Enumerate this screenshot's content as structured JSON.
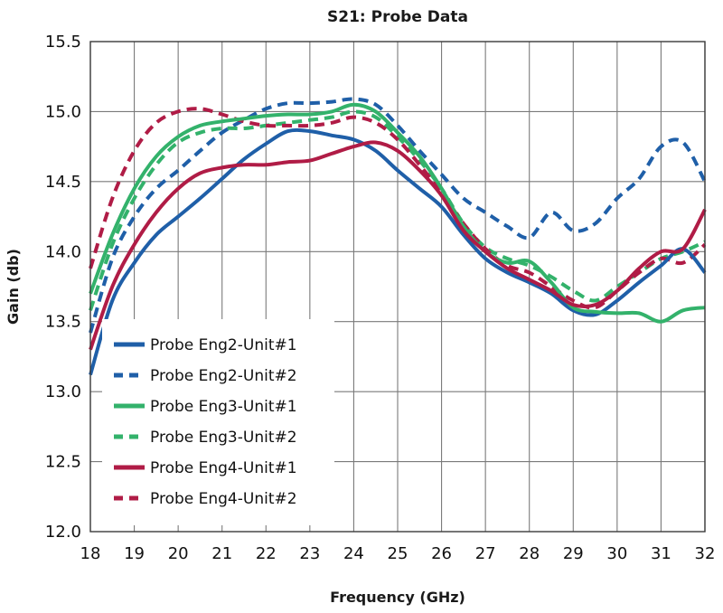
{
  "chart_data": {
    "type": "line",
    "title": "S21: Probe Data",
    "xlabel": "Frequency (GHz)",
    "ylabel": "Gain (db)",
    "xlim": [
      18,
      32
    ],
    "ylim": [
      12.0,
      15.5
    ],
    "x_ticks": [
      "18",
      "19",
      "20",
      "21",
      "22",
      "23",
      "24",
      "25",
      "26",
      "27",
      "28",
      "29",
      "30",
      "31",
      "32"
    ],
    "y_ticks": [
      "12.0",
      "12.5",
      "13.0",
      "13.5",
      "14.0",
      "14.5",
      "15.0",
      "15.5"
    ],
    "grid": true,
    "legend_position": "bottom-left",
    "series": [
      {
        "name": "Probe Eng2-Unit#1",
        "color": "#1f5fa8",
        "dash": "solid",
        "x": [
          18,
          18.5,
          19,
          19.5,
          20,
          20.5,
          21,
          21.5,
          22,
          22.5,
          23,
          23.5,
          24,
          24.5,
          25,
          25.5,
          26,
          26.5,
          27,
          27.5,
          28,
          28.5,
          29,
          29.5,
          30,
          30.5,
          31,
          31.5,
          32
        ],
        "y": [
          13.12,
          13.65,
          13.92,
          14.12,
          14.25,
          14.38,
          14.52,
          14.66,
          14.77,
          14.86,
          14.86,
          14.83,
          14.8,
          14.72,
          14.58,
          14.45,
          14.32,
          14.12,
          13.95,
          13.85,
          13.78,
          13.7,
          13.58,
          13.55,
          13.65,
          13.78,
          13.9,
          14.02,
          13.85
        ]
      },
      {
        "name": "Probe Eng2-Unit#2",
        "color": "#1f5fa8",
        "dash": "dashed",
        "x": [
          18,
          18.5,
          19,
          19.5,
          20,
          20.5,
          21,
          21.5,
          22,
          22.5,
          23,
          23.5,
          24,
          24.5,
          25,
          25.5,
          26,
          26.5,
          27,
          27.5,
          28,
          28.5,
          29,
          29.5,
          30,
          30.5,
          31,
          31.5,
          32
        ],
        "y": [
          13.42,
          13.95,
          14.25,
          14.45,
          14.58,
          14.72,
          14.85,
          14.94,
          15.02,
          15.06,
          15.06,
          15.07,
          15.09,
          15.05,
          14.9,
          14.72,
          14.55,
          14.38,
          14.28,
          14.18,
          14.1,
          14.28,
          14.15,
          14.2,
          14.38,
          14.52,
          14.75,
          14.78,
          14.5
        ]
      },
      {
        "name": "Probe Eng3-Unit#1",
        "color": "#33b26b",
        "dash": "solid",
        "x": [
          18,
          18.5,
          19,
          19.5,
          20,
          20.5,
          21,
          21.5,
          22,
          22.5,
          23,
          23.5,
          24,
          24.5,
          25,
          25.5,
          26,
          26.5,
          27,
          27.5,
          28,
          28.5,
          29,
          29.5,
          30,
          30.5,
          31,
          31.5,
          32
        ],
        "y": [
          13.7,
          14.12,
          14.45,
          14.68,
          14.82,
          14.9,
          14.93,
          14.95,
          14.97,
          14.98,
          14.98,
          15.0,
          15.05,
          15.0,
          14.85,
          14.68,
          14.45,
          14.18,
          14.0,
          13.92,
          13.93,
          13.78,
          13.6,
          13.57,
          13.56,
          13.56,
          13.5,
          13.58,
          13.6
        ]
      },
      {
        "name": "Probe Eng3-Unit#2",
        "color": "#33b26b",
        "dash": "dashed",
        "x": [
          18,
          18.5,
          19,
          19.5,
          20,
          20.5,
          21,
          21.5,
          22,
          22.5,
          23,
          23.5,
          24,
          24.5,
          25,
          25.5,
          26,
          26.5,
          27,
          27.5,
          28,
          28.5,
          29,
          29.5,
          30,
          30.5,
          31,
          31.5,
          32
        ],
        "y": [
          13.58,
          14.05,
          14.38,
          14.62,
          14.78,
          14.85,
          14.88,
          14.88,
          14.9,
          14.92,
          14.94,
          14.96,
          15.0,
          14.96,
          14.82,
          14.65,
          14.45,
          14.2,
          14.03,
          13.95,
          13.9,
          13.82,
          13.72,
          13.65,
          13.75,
          13.85,
          13.95,
          14.0,
          14.07
        ]
      },
      {
        "name": "Probe Eng4-Unit#1",
        "color": "#b01c46",
        "dash": "solid",
        "x": [
          18,
          18.5,
          19,
          19.5,
          20,
          20.5,
          21,
          21.5,
          22,
          22.5,
          23,
          23.5,
          24,
          24.5,
          25,
          25.5,
          26,
          26.5,
          27,
          27.5,
          28,
          28.5,
          29,
          29.5,
          30,
          30.5,
          31,
          31.5,
          32
        ],
        "y": [
          13.3,
          13.75,
          14.05,
          14.28,
          14.45,
          14.56,
          14.6,
          14.62,
          14.62,
          14.64,
          14.65,
          14.7,
          14.75,
          14.78,
          14.72,
          14.58,
          14.4,
          14.15,
          14.0,
          13.88,
          13.8,
          13.72,
          13.62,
          13.62,
          13.72,
          13.88,
          14.0,
          14.02,
          14.3
        ]
      },
      {
        "name": "Probe Eng4-Unit#2",
        "color": "#b01c46",
        "dash": "dashed",
        "x": [
          18,
          18.5,
          19,
          19.5,
          20,
          20.5,
          21,
          21.5,
          22,
          22.5,
          23,
          23.5,
          24,
          24.5,
          25,
          25.5,
          26,
          26.5,
          27,
          27.5,
          28,
          28.5,
          29,
          29.5,
          30,
          30.5,
          31,
          31.5,
          32
        ],
        "y": [
          13.88,
          14.38,
          14.72,
          14.92,
          15.0,
          15.02,
          14.98,
          14.93,
          14.9,
          14.9,
          14.9,
          14.92,
          14.96,
          14.92,
          14.8,
          14.62,
          14.42,
          14.2,
          14.02,
          13.9,
          13.85,
          13.75,
          13.65,
          13.6,
          13.72,
          13.85,
          13.95,
          13.92,
          14.05
        ]
      }
    ]
  }
}
